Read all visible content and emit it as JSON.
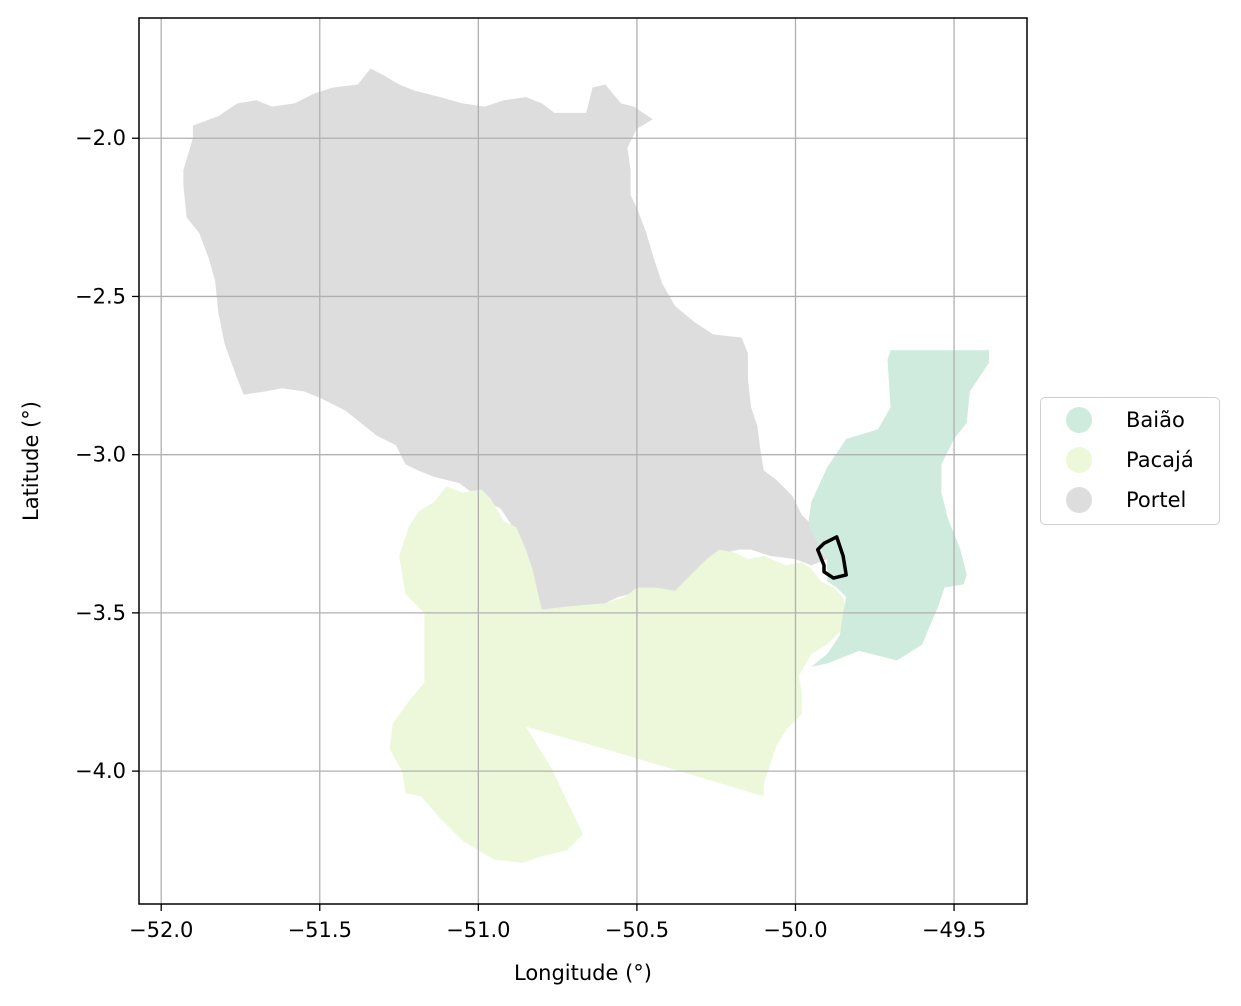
{
  "chart_data": {
    "type": "map",
    "xlabel": "Longitude (°)",
    "ylabel": "Latitude (°)",
    "xlim": [
      -52.07,
      -49.27
    ],
    "ylim": [
      -4.42,
      -1.62
    ],
    "x_ticks": [
      -52.0,
      -51.5,
      -51.0,
      -50.5,
      -50.0,
      -49.5
    ],
    "x_tick_labels": [
      "−52.0",
      "−51.5",
      "−51.0",
      "−50.5",
      "−50.0",
      "−49.5"
    ],
    "y_ticks": [
      -2.0,
      -2.5,
      -3.0,
      -3.5,
      -4.0
    ],
    "y_tick_labels": [
      "−2.0",
      "−2.5",
      "−3.0",
      "−3.5",
      "−4.0"
    ],
    "grid": true,
    "legend_position": "right",
    "regions": [
      {
        "name": "Portel",
        "color": "#dddddd",
        "polygon": [
          [
            -51.9,
            -1.96
          ],
          [
            -51.82,
            -1.93
          ],
          [
            -51.76,
            -1.89
          ],
          [
            -51.7,
            -1.88
          ],
          [
            -51.65,
            -1.9
          ],
          [
            -51.58,
            -1.89
          ],
          [
            -51.52,
            -1.86
          ],
          [
            -51.46,
            -1.84
          ],
          [
            -51.38,
            -1.83
          ],
          [
            -51.34,
            -1.78
          ],
          [
            -51.3,
            -1.8
          ],
          [
            -51.25,
            -1.83
          ],
          [
            -51.2,
            -1.85
          ],
          [
            -51.12,
            -1.87
          ],
          [
            -51.05,
            -1.89
          ],
          [
            -50.98,
            -1.9
          ],
          [
            -50.92,
            -1.88
          ],
          [
            -50.85,
            -1.87
          ],
          [
            -50.8,
            -1.89
          ],
          [
            -50.76,
            -1.92
          ],
          [
            -50.71,
            -1.92
          ],
          [
            -50.66,
            -1.92
          ],
          [
            -50.64,
            -1.84
          ],
          [
            -50.6,
            -1.83
          ],
          [
            -50.55,
            -1.89
          ],
          [
            -50.51,
            -1.9
          ],
          [
            -50.45,
            -1.94
          ],
          [
            -50.5,
            -1.97
          ],
          [
            -50.53,
            -2.03
          ],
          [
            -50.52,
            -2.1
          ],
          [
            -50.52,
            -2.18
          ],
          [
            -50.5,
            -2.22
          ],
          [
            -50.47,
            -2.3
          ],
          [
            -50.45,
            -2.37
          ],
          [
            -50.42,
            -2.46
          ],
          [
            -50.38,
            -2.53
          ],
          [
            -50.32,
            -2.58
          ],
          [
            -50.26,
            -2.62
          ],
          [
            -50.17,
            -2.63
          ],
          [
            -50.15,
            -2.68
          ],
          [
            -50.15,
            -2.76
          ],
          [
            -50.14,
            -2.85
          ],
          [
            -50.12,
            -2.91
          ],
          [
            -50.11,
            -2.99
          ],
          [
            -50.1,
            -3.05
          ],
          [
            -50.06,
            -3.08
          ],
          [
            -50.01,
            -3.13
          ],
          [
            -49.98,
            -3.19
          ],
          [
            -49.95,
            -3.22
          ],
          [
            -49.92,
            -3.3
          ],
          [
            -49.9,
            -3.33
          ],
          [
            -49.95,
            -3.35
          ],
          [
            -50.0,
            -3.33
          ],
          [
            -50.08,
            -3.32
          ],
          [
            -50.14,
            -3.3
          ],
          [
            -50.18,
            -3.3
          ],
          [
            -50.22,
            -3.31
          ],
          [
            -50.26,
            -3.33
          ],
          [
            -50.3,
            -3.37
          ],
          [
            -50.35,
            -3.42
          ],
          [
            -50.4,
            -3.44
          ],
          [
            -50.47,
            -3.43
          ],
          [
            -50.52,
            -3.44
          ],
          [
            -50.56,
            -3.45
          ],
          [
            -50.6,
            -3.47
          ],
          [
            -50.72,
            -3.48
          ],
          [
            -50.8,
            -3.49
          ],
          [
            -50.82,
            -3.44
          ],
          [
            -50.83,
            -3.37
          ],
          [
            -50.85,
            -3.3
          ],
          [
            -50.89,
            -3.23
          ],
          [
            -50.93,
            -3.17
          ],
          [
            -50.97,
            -3.15
          ],
          [
            -51.02,
            -3.12
          ],
          [
            -51.06,
            -3.09
          ],
          [
            -51.1,
            -3.08
          ],
          [
            -51.14,
            -3.07
          ],
          [
            -51.19,
            -3.05
          ],
          [
            -51.23,
            -3.03
          ],
          [
            -51.26,
            -2.97
          ],
          [
            -51.32,
            -2.94
          ],
          [
            -51.42,
            -2.86
          ],
          [
            -51.5,
            -2.82
          ],
          [
            -51.55,
            -2.8
          ],
          [
            -51.62,
            -2.79
          ],
          [
            -51.67,
            -2.8
          ],
          [
            -51.74,
            -2.81
          ],
          [
            -51.76,
            -2.76
          ],
          [
            -51.8,
            -2.65
          ],
          [
            -51.82,
            -2.55
          ],
          [
            -51.83,
            -2.45
          ],
          [
            -51.85,
            -2.38
          ],
          [
            -51.88,
            -2.3
          ],
          [
            -51.92,
            -2.25
          ],
          [
            -51.93,
            -2.15
          ],
          [
            -51.93,
            -2.1
          ],
          [
            -51.9,
            -2.0
          ]
        ]
      },
      {
        "name": "Pacajá",
        "color": "#edf8db",
        "polygon": [
          [
            -51.14,
            -3.15
          ],
          [
            -51.1,
            -3.1
          ],
          [
            -51.05,
            -3.12
          ],
          [
            -50.99,
            -3.11
          ],
          [
            -50.96,
            -3.14
          ],
          [
            -50.92,
            -3.21
          ],
          [
            -50.88,
            -3.23
          ],
          [
            -50.85,
            -3.3
          ],
          [
            -50.83,
            -3.36
          ],
          [
            -50.8,
            -3.49
          ],
          [
            -50.72,
            -3.48
          ],
          [
            -50.6,
            -3.47
          ],
          [
            -50.54,
            -3.45
          ],
          [
            -50.5,
            -3.42
          ],
          [
            -50.44,
            -3.42
          ],
          [
            -50.38,
            -3.43
          ],
          [
            -50.33,
            -3.38
          ],
          [
            -50.3,
            -3.35
          ],
          [
            -50.28,
            -3.33
          ],
          [
            -50.24,
            -3.3
          ],
          [
            -50.19,
            -3.31
          ],
          [
            -50.15,
            -3.33
          ],
          [
            -50.1,
            -3.32
          ],
          [
            -50.03,
            -3.35
          ],
          [
            -49.98,
            -3.34
          ],
          [
            -49.95,
            -3.36
          ],
          [
            -49.92,
            -3.4
          ],
          [
            -49.88,
            -3.42
          ],
          [
            -49.85,
            -3.45
          ],
          [
            -49.84,
            -3.5
          ],
          [
            -49.86,
            -3.56
          ],
          [
            -49.9,
            -3.6
          ],
          [
            -49.95,
            -3.63
          ],
          [
            -49.99,
            -3.7
          ],
          [
            -49.98,
            -3.75
          ],
          [
            -49.98,
            -3.82
          ],
          [
            -50.03,
            -3.87
          ],
          [
            -50.06,
            -3.92
          ],
          [
            -50.08,
            -3.98
          ],
          [
            -50.1,
            -4.04
          ],
          [
            -50.1,
            -4.08
          ],
          [
            -50.4,
            -3.99
          ],
          [
            -50.6,
            -3.93
          ],
          [
            -50.85,
            -3.86
          ],
          [
            -50.77,
            -3.99
          ],
          [
            -50.67,
            -4.2
          ],
          [
            -50.72,
            -4.25
          ],
          [
            -50.8,
            -4.27
          ],
          [
            -50.86,
            -4.29
          ],
          [
            -50.95,
            -4.28
          ],
          [
            -51.05,
            -4.22
          ],
          [
            -51.12,
            -4.15
          ],
          [
            -51.18,
            -4.08
          ],
          [
            -51.23,
            -4.07
          ],
          [
            -51.24,
            -4.0
          ],
          [
            -51.28,
            -3.93
          ],
          [
            -51.27,
            -3.85
          ],
          [
            -51.22,
            -3.78
          ],
          [
            -51.17,
            -3.72
          ],
          [
            -51.17,
            -3.5
          ],
          [
            -51.23,
            -3.44
          ],
          [
            -51.24,
            -3.38
          ],
          [
            -51.25,
            -3.32
          ],
          [
            -51.22,
            -3.23
          ],
          [
            -51.19,
            -3.18
          ]
        ]
      },
      {
        "name": "Baião",
        "color": "#ceebdd",
        "polygon": [
          [
            -49.7,
            -2.67
          ],
          [
            -49.39,
            -2.67
          ],
          [
            -49.39,
            -2.71
          ],
          [
            -49.45,
            -2.8
          ],
          [
            -49.46,
            -2.9
          ],
          [
            -49.5,
            -2.95
          ],
          [
            -49.54,
            -3.03
          ],
          [
            -49.54,
            -3.12
          ],
          [
            -49.52,
            -3.2
          ],
          [
            -49.48,
            -3.3
          ],
          [
            -49.46,
            -3.38
          ],
          [
            -49.47,
            -3.41
          ],
          [
            -49.53,
            -3.42
          ],
          [
            -49.55,
            -3.48
          ],
          [
            -49.58,
            -3.55
          ],
          [
            -49.6,
            -3.6
          ],
          [
            -49.68,
            -3.65
          ],
          [
            -49.8,
            -3.62
          ],
          [
            -49.9,
            -3.66
          ],
          [
            -49.95,
            -3.67
          ],
          [
            -49.9,
            -3.63
          ],
          [
            -49.86,
            -3.57
          ],
          [
            -49.85,
            -3.5
          ],
          [
            -49.84,
            -3.45
          ],
          [
            -49.87,
            -3.42
          ],
          [
            -49.9,
            -3.4
          ],
          [
            -49.9,
            -3.33
          ],
          [
            -49.93,
            -3.28
          ],
          [
            -49.96,
            -3.22
          ],
          [
            -49.95,
            -3.15
          ],
          [
            -49.9,
            -3.04
          ],
          [
            -49.84,
            -2.95
          ],
          [
            -49.74,
            -2.92
          ],
          [
            -49.7,
            -2.85
          ],
          [
            -49.71,
            -2.7
          ]
        ]
      }
    ],
    "highlight": {
      "polygon": [
        [
          -49.87,
          -3.26
        ],
        [
          -49.91,
          -3.28
        ],
        [
          -49.93,
          -3.3
        ],
        [
          -49.91,
          -3.35
        ],
        [
          -49.91,
          -3.37
        ],
        [
          -49.88,
          -3.39
        ],
        [
          -49.84,
          -3.38
        ],
        [
          -49.85,
          -3.32
        ]
      ],
      "color": "#000000"
    }
  },
  "legend": {
    "items": [
      {
        "label": "Baião",
        "color": "#ceebdd"
      },
      {
        "label": "Pacajá",
        "color": "#edf8db"
      },
      {
        "label": "Portel",
        "color": "#dddddd"
      }
    ]
  }
}
